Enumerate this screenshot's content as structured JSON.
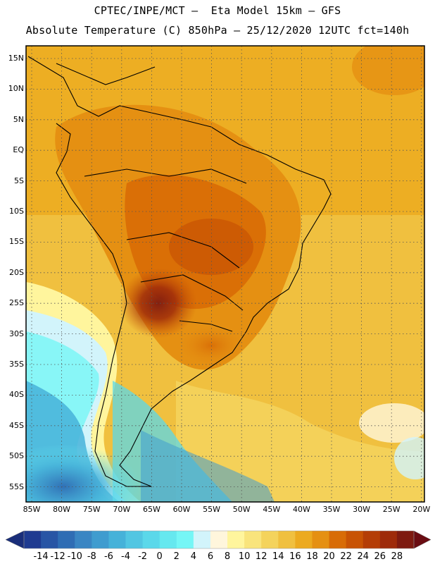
{
  "header": {
    "line1": "CPTEC/INPE/MCT –  Eta Model 15km – GFS",
    "line2": "Absolute Temperature (C) 850hPa – 25/12/2020 12UTC fct=140h"
  },
  "map": {
    "lat_labels": [
      "15N",
      "10N",
      "5N",
      "EQ",
      "5S",
      "10S",
      "15S",
      "20S",
      "25S",
      "30S",
      "35S",
      "40S",
      "45S",
      "50S",
      "55S"
    ],
    "lon_labels": [
      "85W",
      "80W",
      "75W",
      "70W",
      "65W",
      "60W",
      "55W",
      "50W",
      "45W",
      "40W",
      "35W",
      "30W",
      "25W",
      "20W"
    ]
  },
  "colorbar": {
    "levels": [
      "-14",
      "-12",
      "-10",
      "-8",
      "-6",
      "-4",
      "-2",
      "0",
      "2",
      "4",
      "6",
      "8",
      "10",
      "12",
      "14",
      "16",
      "18",
      "20",
      "22",
      "24",
      "26",
      "28"
    ],
    "colors": [
      "#1f3b91",
      "#2855a5",
      "#2f6db4",
      "#3a86c3",
      "#3f9ccf",
      "#46b2d9",
      "#52c6e2",
      "#5bd8ea",
      "#66e8ef",
      "#75f6f6",
      "#d2f4fb",
      "#fff6dc",
      "#fff59d",
      "#f9e47c",
      "#f4d35c",
      "#f0c03f",
      "#ecaa1f",
      "#e59012",
      "#d86c06",
      "#c85304",
      "#b43d06",
      "#9e2a0a",
      "#7e1a10"
    ]
  }
}
